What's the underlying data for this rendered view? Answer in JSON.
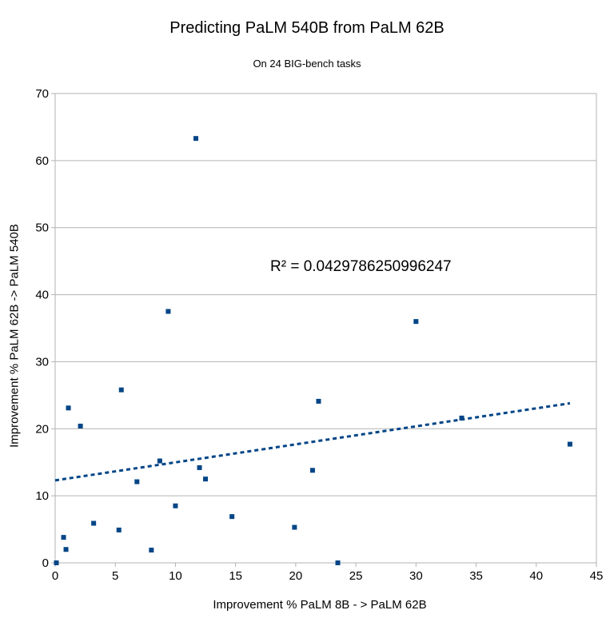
{
  "chart_data": {
    "type": "scatter",
    "title": "Predicting PaLM 540B from PaLM 62B",
    "subtitle": "On 24 BIG-bench tasks",
    "xlabel": "Improvement % PaLM 8B - > PaLM 62B",
    "ylabel": "Improvement % PaLM 62B -> PaLM 540B",
    "xlim": [
      0,
      45
    ],
    "ylim": [
      0,
      70
    ],
    "xticks": [
      0,
      5,
      10,
      15,
      20,
      25,
      30,
      35,
      40,
      45
    ],
    "yticks": [
      0,
      10,
      20,
      30,
      40,
      50,
      60,
      70
    ],
    "grid": "horizontal",
    "legend": "none",
    "point_color": "#004586",
    "trendline": {
      "type": "linear",
      "start": [
        0,
        12.3
      ],
      "end": [
        42.8,
        23.8
      ],
      "color": "#004586",
      "style": "dashed",
      "r_squared_label": "R² = 0.0429786250996247"
    },
    "points": [
      {
        "x": 0.1,
        "y": 0
      },
      {
        "x": 0.7,
        "y": 3.8
      },
      {
        "x": 0.9,
        "y": 2.0
      },
      {
        "x": 1.1,
        "y": 23.1
      },
      {
        "x": 2.1,
        "y": 20.4
      },
      {
        "x": 3.2,
        "y": 5.9
      },
      {
        "x": 5.3,
        "y": 4.9
      },
      {
        "x": 5.5,
        "y": 25.8
      },
      {
        "x": 6.8,
        "y": 12.1
      },
      {
        "x": 8.0,
        "y": 1.9
      },
      {
        "x": 8.7,
        "y": 15.2
      },
      {
        "x": 9.4,
        "y": 37.5
      },
      {
        "x": 10.0,
        "y": 8.5
      },
      {
        "x": 11.7,
        "y": 63.3
      },
      {
        "x": 12.0,
        "y": 14.2
      },
      {
        "x": 12.5,
        "y": 12.5
      },
      {
        "x": 14.7,
        "y": 6.9
      },
      {
        "x": 19.9,
        "y": 5.3
      },
      {
        "x": 21.4,
        "y": 13.8
      },
      {
        "x": 21.9,
        "y": 24.1
      },
      {
        "x": 23.5,
        "y": 0
      },
      {
        "x": 30.0,
        "y": 36.0
      },
      {
        "x": 33.8,
        "y": 21.6
      },
      {
        "x": 42.8,
        "y": 17.7
      }
    ]
  }
}
